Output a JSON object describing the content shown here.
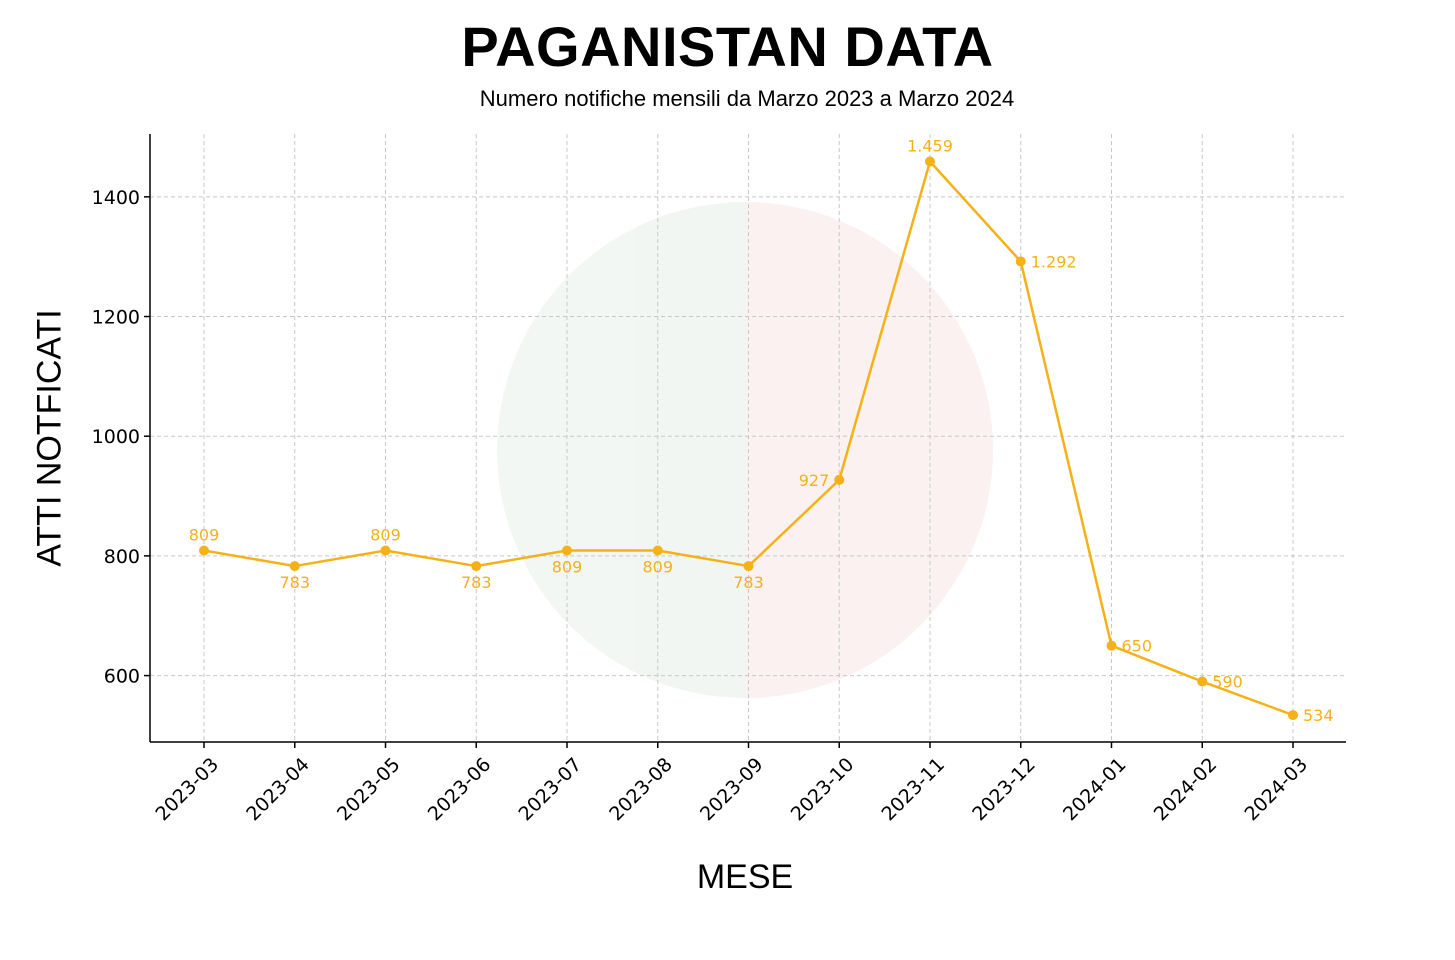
{
  "chart_data": {
    "type": "line",
    "title": "PAGANISTAN DATA",
    "subtitle": "Numero notifiche mensili da Marzo 2023 a Marzo 2024",
    "xlabel": "MESE",
    "ylabel": "ATTI NOTFICATI",
    "categories": [
      "2023-03",
      "2023-04",
      "2023-05",
      "2023-06",
      "2023-07",
      "2023-08",
      "2023-09",
      "2023-10",
      "2023-11",
      "2023-12",
      "2024-01",
      "2024-02",
      "2024-03"
    ],
    "series": [
      {
        "values": [
          809,
          783,
          809,
          783,
          809,
          809,
          783,
          927,
          1459,
          1292,
          650,
          590,
          534
        ],
        "data_labels": [
          "809",
          "783",
          "809",
          "783",
          "809",
          "809",
          "783",
          "927",
          "1.459",
          "1.292",
          "650",
          "590",
          "534"
        ],
        "color": "#F5B118"
      }
    ],
    "yticks": [
      600,
      800,
      1000,
      1200,
      1400
    ],
    "ylim": [
      489,
      1505
    ],
    "grid": true,
    "legend": "none"
  }
}
